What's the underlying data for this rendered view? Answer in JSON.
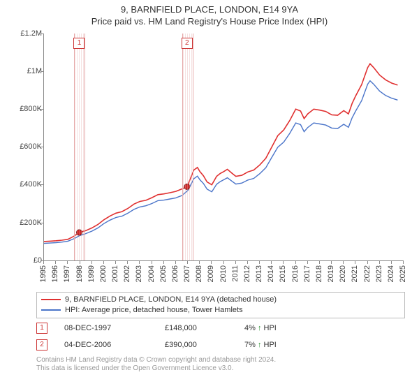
{
  "title": "9, BARNFIELD PLACE, LONDON, E14 9YA",
  "subtitle": "Price paid vs. HM Land Registry's House Price Index (HPI)",
  "chart": {
    "type": "line",
    "background_color": "#ffffff",
    "axis_color": "#888888",
    "x": {
      "min": 1995,
      "max": 2025,
      "tick_step": 1,
      "tick_fontsize": 11,
      "tick_color": "#444444",
      "labels": [
        "1995",
        "1996",
        "1997",
        "1998",
        "1999",
        "2000",
        "2001",
        "2002",
        "2003",
        "2004",
        "2005",
        "2006",
        "2007",
        "2008",
        "2009",
        "2010",
        "2011",
        "2012",
        "2013",
        "2014",
        "2015",
        "2016",
        "2017",
        "2018",
        "2019",
        "2020",
        "2021",
        "2022",
        "2023",
        "2024",
        "2025"
      ]
    },
    "y": {
      "min": 0,
      "max": 1200000,
      "tick_step": 200000,
      "tick_labels": [
        "£0",
        "£200K",
        "£400K",
        "£600K",
        "£800K",
        "£1M",
        "£1.2M"
      ],
      "tick_fontsize": 11,
      "tick_color": "#444444"
    },
    "series": [
      {
        "id": "price_paid",
        "label": "9, BARNFIELD PLACE, LONDON, E14 9YA (detached house)",
        "color": "#e03030",
        "line_width": 1.6,
        "points": [
          [
            1995.0,
            100000
          ],
          [
            1995.5,
            102000
          ],
          [
            1996.0,
            104000
          ],
          [
            1996.5,
            107000
          ],
          [
            1997.0,
            112000
          ],
          [
            1997.5,
            128000
          ],
          [
            1997.94,
            148000
          ],
          [
            1998.5,
            158000
          ],
          [
            1999.0,
            172000
          ],
          [
            1999.5,
            190000
          ],
          [
            2000.0,
            215000
          ],
          [
            2000.5,
            235000
          ],
          [
            2001.0,
            250000
          ],
          [
            2001.5,
            258000
          ],
          [
            2002.0,
            275000
          ],
          [
            2002.5,
            298000
          ],
          [
            2003.0,
            312000
          ],
          [
            2003.5,
            318000
          ],
          [
            2004.0,
            332000
          ],
          [
            2004.5,
            348000
          ],
          [
            2005.0,
            352000
          ],
          [
            2005.5,
            358000
          ],
          [
            2006.0,
            365000
          ],
          [
            2006.5,
            378000
          ],
          [
            2006.93,
            390000
          ],
          [
            2007.2,
            430000
          ],
          [
            2007.5,
            478000
          ],
          [
            2007.8,
            492000
          ],
          [
            2008.0,
            470000
          ],
          [
            2008.3,
            448000
          ],
          [
            2008.6,
            415000
          ],
          [
            2009.0,
            400000
          ],
          [
            2009.4,
            445000
          ],
          [
            2009.7,
            460000
          ],
          [
            2010.0,
            470000
          ],
          [
            2010.3,
            482000
          ],
          [
            2010.7,
            460000
          ],
          [
            2011.0,
            445000
          ],
          [
            2011.5,
            450000
          ],
          [
            2012.0,
            468000
          ],
          [
            2012.5,
            478000
          ],
          [
            2013.0,
            505000
          ],
          [
            2013.5,
            540000
          ],
          [
            2014.0,
            600000
          ],
          [
            2014.5,
            660000
          ],
          [
            2015.0,
            690000
          ],
          [
            2015.5,
            740000
          ],
          [
            2016.0,
            800000
          ],
          [
            2016.4,
            790000
          ],
          [
            2016.7,
            750000
          ],
          [
            2017.0,
            775000
          ],
          [
            2017.5,
            800000
          ],
          [
            2018.0,
            795000
          ],
          [
            2018.5,
            788000
          ],
          [
            2019.0,
            770000
          ],
          [
            2019.5,
            768000
          ],
          [
            2020.0,
            792000
          ],
          [
            2020.4,
            775000
          ],
          [
            2020.7,
            830000
          ],
          [
            2021.0,
            870000
          ],
          [
            2021.5,
            930000
          ],
          [
            2022.0,
            1020000
          ],
          [
            2022.2,
            1040000
          ],
          [
            2022.5,
            1020000
          ],
          [
            2023.0,
            980000
          ],
          [
            2023.5,
            955000
          ],
          [
            2024.0,
            938000
          ],
          [
            2024.5,
            927000
          ]
        ]
      },
      {
        "id": "hpi",
        "label": "HPI: Average price, detached house, Tower Hamlets",
        "color": "#4a74c9",
        "line_width": 1.4,
        "points": [
          [
            1995.0,
            90000
          ],
          [
            1995.5,
            92000
          ],
          [
            1996.0,
            94000
          ],
          [
            1996.5,
            97000
          ],
          [
            1997.0,
            102000
          ],
          [
            1997.5,
            115000
          ],
          [
            1998.0,
            132000
          ],
          [
            1998.5,
            142000
          ],
          [
            1999.0,
            155000
          ],
          [
            1999.5,
            172000
          ],
          [
            2000.0,
            195000
          ],
          [
            2000.5,
            213000
          ],
          [
            2001.0,
            227000
          ],
          [
            2001.5,
            234000
          ],
          [
            2002.0,
            250000
          ],
          [
            2002.5,
            270000
          ],
          [
            2003.0,
            283000
          ],
          [
            2003.5,
            289000
          ],
          [
            2004.0,
            301000
          ],
          [
            2004.5,
            316000
          ],
          [
            2005.0,
            319000
          ],
          [
            2005.5,
            325000
          ],
          [
            2006.0,
            331000
          ],
          [
            2006.5,
            343000
          ],
          [
            2007.0,
            370000
          ],
          [
            2007.5,
            432000
          ],
          [
            2007.8,
            446000
          ],
          [
            2008.0,
            427000
          ],
          [
            2008.3,
            407000
          ],
          [
            2008.6,
            377000
          ],
          [
            2009.0,
            363000
          ],
          [
            2009.4,
            403000
          ],
          [
            2009.7,
            417000
          ],
          [
            2010.0,
            427000
          ],
          [
            2010.3,
            437000
          ],
          [
            2010.7,
            418000
          ],
          [
            2011.0,
            404000
          ],
          [
            2011.5,
            409000
          ],
          [
            2012.0,
            425000
          ],
          [
            2012.5,
            434000
          ],
          [
            2013.0,
            459000
          ],
          [
            2013.5,
            490000
          ],
          [
            2014.0,
            545000
          ],
          [
            2014.5,
            599000
          ],
          [
            2015.0,
            626000
          ],
          [
            2015.5,
            672000
          ],
          [
            2016.0,
            727000
          ],
          [
            2016.4,
            718000
          ],
          [
            2016.7,
            681000
          ],
          [
            2017.0,
            703000
          ],
          [
            2017.5,
            727000
          ],
          [
            2018.0,
            722000
          ],
          [
            2018.5,
            716000
          ],
          [
            2019.0,
            700000
          ],
          [
            2019.5,
            698000
          ],
          [
            2020.0,
            720000
          ],
          [
            2020.4,
            704000
          ],
          [
            2020.7,
            754000
          ],
          [
            2021.0,
            790000
          ],
          [
            2021.5,
            845000
          ],
          [
            2022.0,
            932000
          ],
          [
            2022.2,
            950000
          ],
          [
            2022.5,
            932000
          ],
          [
            2023.0,
            895000
          ],
          [
            2023.5,
            872000
          ],
          [
            2024.0,
            858000
          ],
          [
            2024.5,
            848000
          ]
        ]
      }
    ],
    "transactions": [
      {
        "n": "1",
        "year": 1997.94,
        "value": 148000,
        "date": "08-DEC-1997",
        "price": "£148,000",
        "hpi_delta": "4%",
        "arrow": "↑",
        "arrow_color": "#2a9030"
      },
      {
        "n": "2",
        "year": 2006.93,
        "value": 390000,
        "date": "04-DEC-2006",
        "price": "£390,000",
        "hpi_delta": "7%",
        "arrow": "↑",
        "arrow_color": "#2a9030"
      }
    ],
    "band_fill": "rgba(230,170,170,0.35)",
    "band_border": "#e6aaaa",
    "marker_box_border": "#cc3333",
    "marker_box_text": "#cc3333",
    "marker_dot_fill": "#d02828",
    "marker_dot_stroke": "#7a1414",
    "hpi_label": "HPI"
  },
  "legend": {
    "border_color": "#bbbbbb",
    "fontsize": 11
  },
  "footer": {
    "line1": "Contains HM Land Registry data © Crown copyright and database right 2024.",
    "line2": "This data is licensed under the Open Government Licence v3.0.",
    "color": "#999999",
    "fontsize": 10
  }
}
